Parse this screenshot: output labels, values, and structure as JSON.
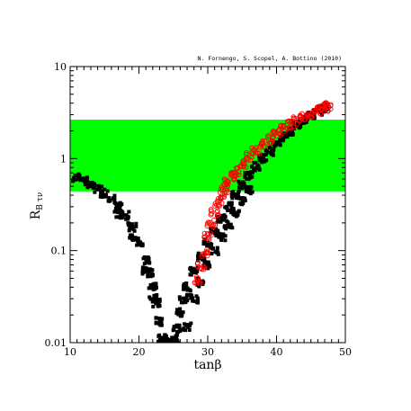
{
  "chart_data": {
    "type": "scatter",
    "title": "",
    "credit": "N. Fornengo, S. Scopel, A. Bottino  (2010)",
    "xlabel": "tanβ",
    "ylabel": "R",
    "ylabel_sub": "B τν",
    "xlim": [
      10,
      50
    ],
    "ylim": [
      0.01,
      10
    ],
    "yscale": "log",
    "x_ticks": [
      10,
      20,
      30,
      40,
      50
    ],
    "y_ticks": [
      0.01,
      0.1,
      1,
      10
    ],
    "y_tick_labels": [
      "0.01",
      "0.1",
      "1",
      "10"
    ],
    "grid": false,
    "band": {
      "y_min": 0.44,
      "y_max": 2.65,
      "color": "#00ff00"
    },
    "series": [
      {
        "color": "#000000",
        "marker": "filled-square",
        "points": [
          [
            11.0,
            0.62
          ],
          [
            12.0,
            0.57
          ],
          [
            13.0,
            0.52
          ],
          [
            14.0,
            0.47
          ],
          [
            15.0,
            0.42
          ],
          [
            16.0,
            0.36
          ],
          [
            17.0,
            0.3
          ],
          [
            18.0,
            0.24
          ],
          [
            19.0,
            0.18
          ],
          [
            20.0,
            0.125
          ],
          [
            21.0,
            0.078
          ],
          [
            21.5,
            0.057
          ],
          [
            22.0,
            0.04
          ],
          [
            22.5,
            0.027
          ],
          [
            23.0,
            0.017
          ],
          [
            23.4,
            0.011
          ],
          [
            17.0,
            0.25
          ],
          [
            19.0,
            0.14
          ],
          [
            21.0,
            0.06
          ],
          [
            22.0,
            0.03
          ],
          [
            23.6,
            0.01
          ],
          [
            24.0,
            0.01
          ],
          [
            24.5,
            0.01
          ],
          [
            25.2,
            0.011
          ],
          [
            25.5,
            0.014
          ],
          [
            26.0,
            0.021
          ],
          [
            26.5,
            0.03
          ],
          [
            27.0,
            0.04
          ],
          [
            28.0,
            0.06
          ],
          [
            29.0,
            0.085
          ],
          [
            30.0,
            0.12
          ],
          [
            31.0,
            0.16
          ],
          [
            32.0,
            0.22
          ],
          [
            33.0,
            0.3
          ],
          [
            34.0,
            0.4
          ],
          [
            35.0,
            0.52
          ],
          [
            36.0,
            0.66
          ],
          [
            37.0,
            0.82
          ],
          [
            38.0,
            1.0
          ],
          [
            39.0,
            1.2
          ],
          [
            40.0,
            1.45
          ],
          [
            41.0,
            1.7
          ],
          [
            42.0,
            2.0
          ],
          [
            43.0,
            2.3
          ],
          [
            44.0,
            2.65
          ],
          [
            45.0,
            3.0
          ],
          [
            46.0,
            3.3
          ],
          [
            47.0,
            3.55
          ],
          [
            27.0,
            0.015
          ],
          [
            28.0,
            0.03
          ],
          [
            29.0,
            0.045
          ],
          [
            30.0,
            0.07
          ],
          [
            31.0,
            0.1
          ],
          [
            32.0,
            0.14
          ],
          [
            33.0,
            0.19
          ],
          [
            34.0,
            0.26
          ],
          [
            35.0,
            0.35
          ],
          [
            36.0,
            0.46
          ]
        ]
      },
      {
        "color": "#ff0000",
        "marker": "open-circle",
        "points": [
          [
            28.5,
            0.048
          ],
          [
            29.0,
            0.068
          ],
          [
            29.5,
            0.095
          ],
          [
            30.0,
            0.14
          ],
          [
            30.5,
            0.2
          ],
          [
            31.0,
            0.26
          ],
          [
            31.5,
            0.32
          ],
          [
            32.0,
            0.4
          ],
          [
            32.5,
            0.47
          ],
          [
            33.0,
            0.56
          ],
          [
            33.5,
            0.64
          ],
          [
            34.0,
            0.72
          ],
          [
            35.0,
            0.88
          ],
          [
            36.0,
            1.05
          ],
          [
            37.0,
            1.22
          ],
          [
            38.0,
            1.42
          ],
          [
            39.0,
            1.62
          ],
          [
            40.0,
            1.85
          ],
          [
            41.0,
            2.1
          ],
          [
            42.0,
            2.35
          ],
          [
            43.0,
            2.6
          ],
          [
            44.0,
            2.85
          ],
          [
            45.0,
            3.1
          ],
          [
            46.0,
            3.35
          ],
          [
            47.0,
            3.6
          ],
          [
            47.5,
            3.75
          ]
        ]
      }
    ]
  }
}
